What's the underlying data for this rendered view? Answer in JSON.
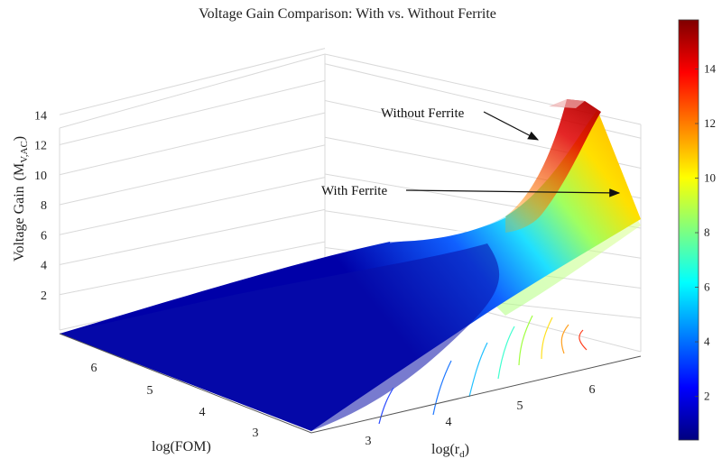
{
  "chart_data": {
    "type": "surface",
    "title": "Voltage Gain Comparison: With vs. Without Ferrite",
    "zlabel": "Voltage  Gain",
    "zlabel_symbol": "M",
    "zlabel_subscript": "V,AC",
    "xlabel": "log(FOM)",
    "ylabel_main": "log(r",
    "ylabel_subscript": "d",
    "ylabel_close": ")",
    "zlim": [
      0,
      16
    ],
    "z_ticks": [
      "2",
      "4",
      "6",
      "8",
      "10",
      "12",
      "14"
    ],
    "fom_ticks": [
      "6",
      "5",
      "4",
      "3"
    ],
    "rd_ticks": [
      "3",
      "4",
      "5",
      "6"
    ],
    "grid": true,
    "colormap": "jet",
    "colorbar": {
      "range": [
        0.4,
        15.8
      ],
      "ticks": [
        "2",
        "4",
        "6",
        "8",
        "10",
        "12",
        "14"
      ]
    },
    "log_rd": [
      3.0,
      3.5,
      4.0,
      4.5,
      5.0,
      5.5,
      6.0,
      6.5
    ],
    "series": [
      {
        "name": "Without Ferrite",
        "surface_ridge_gain": [
          0.6,
          0.8,
          1.2,
          2.2,
          3.5,
          7.0,
          12.5,
          15.6
        ]
      },
      {
        "name": "With Ferrite",
        "surface_ridge_gain": [
          0.5,
          0.6,
          0.9,
          1.5,
          2.6,
          4.6,
          7.5,
          9.5
        ]
      }
    ],
    "annotations": [
      {
        "text": "Without Ferrite"
      },
      {
        "text": "With Ferrite"
      }
    ]
  }
}
